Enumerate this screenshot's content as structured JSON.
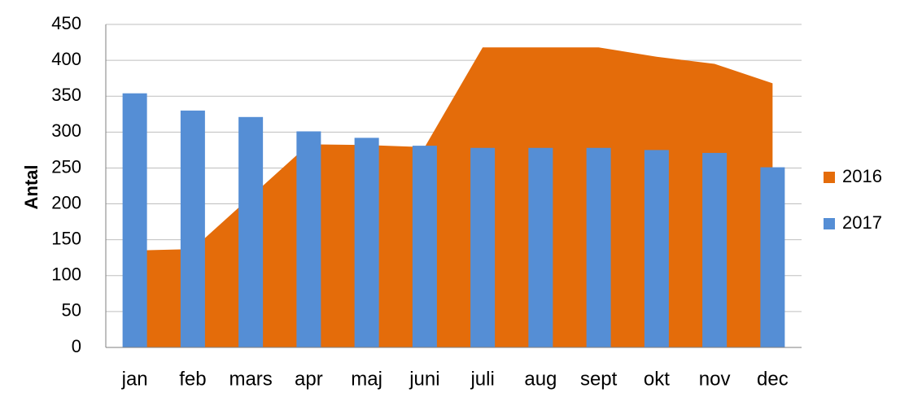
{
  "chart_data": {
    "type": "combo",
    "y_label": "Antal",
    "categories": [
      "jan",
      "feb",
      "mars",
      "apr",
      "maj",
      "juni",
      "juli",
      "aug",
      "sept",
      "okt",
      "nov",
      "dec"
    ],
    "series": [
      {
        "name": "2016",
        "type": "area",
        "color": "#e46c0a",
        "values": [
          135,
          137,
          210,
          283,
          282,
          279,
          418,
          418,
          418,
          405,
          395,
          368
        ]
      },
      {
        "name": "2017",
        "type": "bar",
        "color": "#558ed5",
        "values": [
          354,
          330,
          321,
          301,
          292,
          281,
          278,
          278,
          278,
          275,
          271,
          251
        ]
      }
    ],
    "ylim": [
      0,
      450
    ],
    "yticks": [
      0,
      50,
      100,
      150,
      200,
      250,
      300,
      350,
      400,
      450
    ],
    "grid": true,
    "legend": "right"
  }
}
